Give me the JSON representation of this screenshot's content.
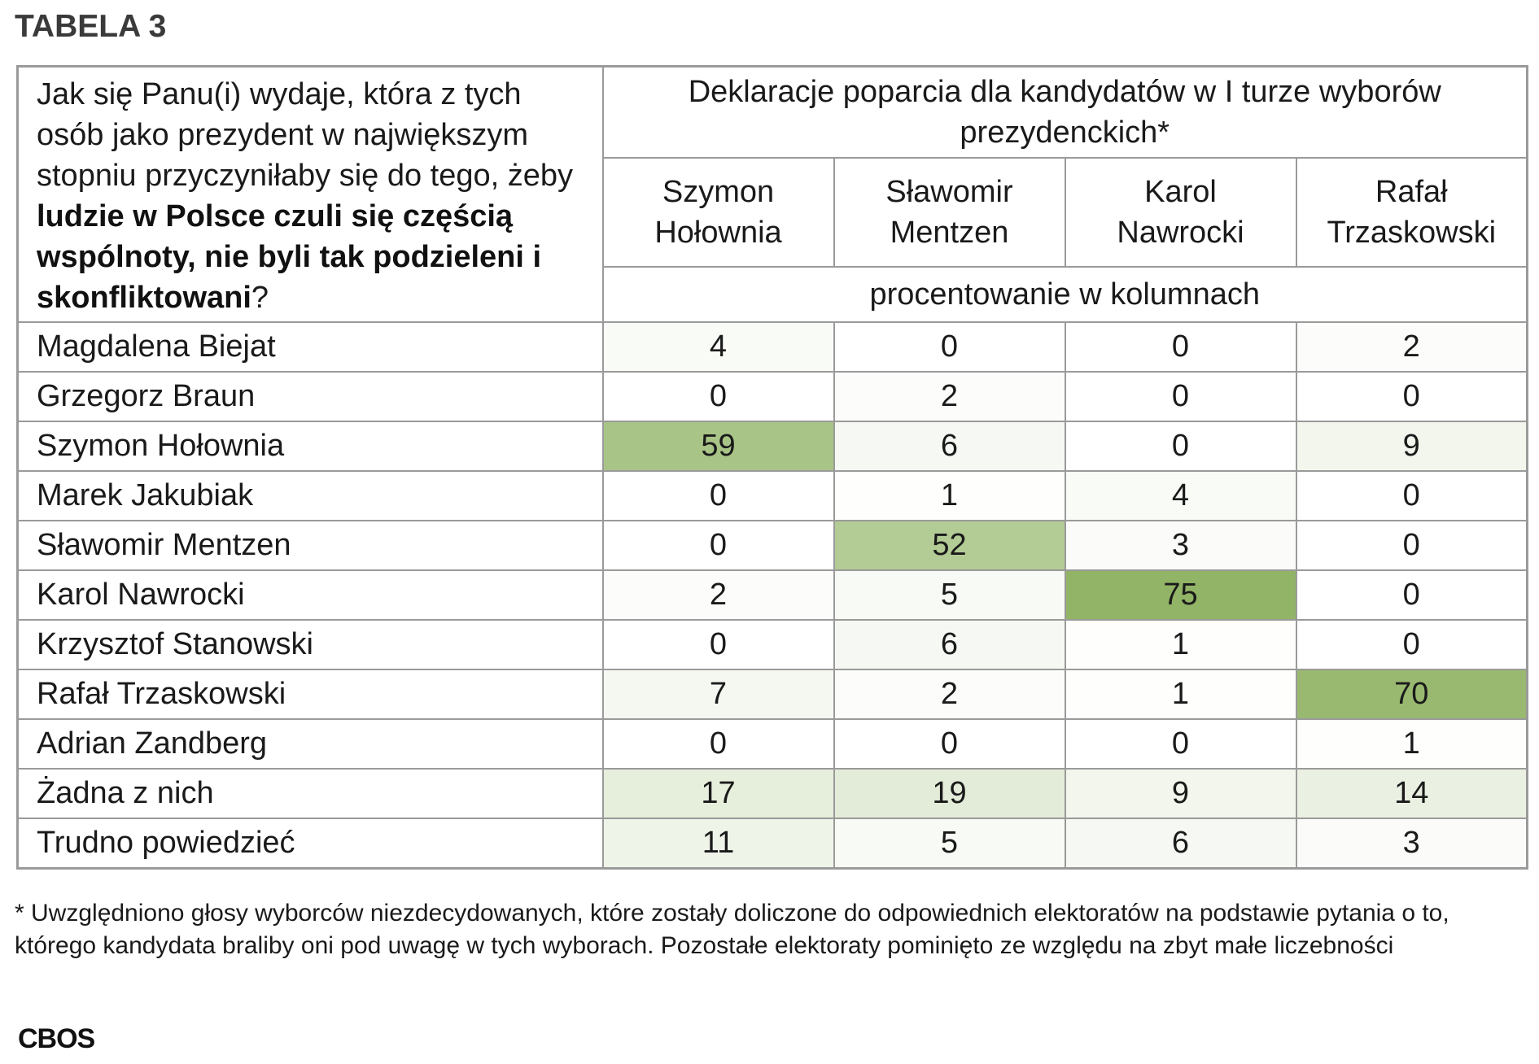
{
  "title": "TABELA 3",
  "question": {
    "part1": "Jak się Panu(i) wydaje, która z tych osób jako prezydent w największym stopniu przyczyniłaby się do tego, żeby ",
    "bold": "ludzie w Polsce czuli się częścią wspólnoty, nie byli tak podzieleni i skonfliktowani",
    "part2": "?"
  },
  "header": {
    "group_label": "Deklaracje poparcia dla kandydatów w I turze wyborów prezydenckich*",
    "unit_label": "procentowanie w kolumnach",
    "candidates": [
      {
        "line1": "Szymon",
        "line2": "Hołownia"
      },
      {
        "line1": "Sławomir",
        "line2": "Mentzen"
      },
      {
        "line1": "Karol",
        "line2": "Nawrocki"
      },
      {
        "line1": "Rafał",
        "line2": "Trzaskowski"
      }
    ]
  },
  "rows": [
    {
      "label": "Magdalena Biejat",
      "values": [
        "4",
        "0",
        "0",
        "2"
      ]
    },
    {
      "label": "Grzegorz Braun",
      "values": [
        "0",
        "2",
        "0",
        "0"
      ]
    },
    {
      "label": "Szymon Hołownia",
      "values": [
        "59",
        "6",
        "0",
        "9"
      ]
    },
    {
      "label": "Marek Jakubiak",
      "values": [
        "0",
        "1",
        "4",
        "0"
      ]
    },
    {
      "label": "Sławomir Mentzen",
      "values": [
        "0",
        "52",
        "3",
        "0"
      ]
    },
    {
      "label": "Karol Nawrocki",
      "values": [
        "2",
        "5",
        "75",
        "0"
      ]
    },
    {
      "label": "Krzysztof Stanowski",
      "values": [
        "0",
        "6",
        "1",
        "0"
      ]
    },
    {
      "label": "Rafał Trzaskowski",
      "values": [
        "7",
        "2",
        "1",
        "70"
      ]
    },
    {
      "label": "Adrian Zandberg",
      "values": [
        "0",
        "0",
        "0",
        "1"
      ]
    },
    {
      "label": "Żadna z nich",
      "values": [
        "17",
        "19",
        "9",
        "14"
      ]
    },
    {
      "label": "Trudno powiedzieć",
      "values": [
        "11",
        "5",
        "6",
        "3"
      ]
    }
  ],
  "colors": {
    "heat_max": "#92b466",
    "heat_min": "#ffffff",
    "border": "#9a9a9a"
  },
  "footnote": "* Uwzględniono głosy wyborców niezdecydowanych, które zostały doliczone do odpowiednich elektoratów na podstawie pytania o to, którego kandydata braliby oni pod uwagę w tych wyborach. Pozostałe elektoraty pominięto ze względu na zbyt małe liczebności",
  "source": "CBOS"
}
